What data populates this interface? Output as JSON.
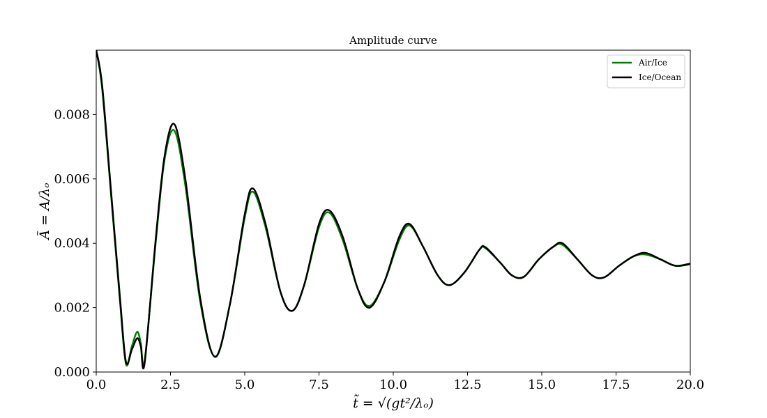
{
  "chart_data": {
    "type": "line",
    "title": "Amplitude curve",
    "xlabel": "t̃ = √(gt²/λₒ)",
    "ylabel": "Ã = A/λₒ",
    "xlim": [
      0,
      20
    ],
    "ylim": [
      0,
      0.01
    ],
    "xticks": [
      0,
      2.5,
      5,
      7.5,
      10,
      12.5,
      15,
      17.5,
      20
    ],
    "xtick_labels": [
      "0.0",
      "2.5",
      "5.0",
      "7.5",
      "10.0",
      "12.5",
      "15.0",
      "17.5",
      "20.0"
    ],
    "yticks": [
      0,
      0.002,
      0.004,
      0.006,
      0.008
    ],
    "ytick_labels": [
      "0.000",
      "0.002",
      "0.004",
      "0.006",
      "0.008"
    ],
    "legend_position": "top-right",
    "series": [
      {
        "name": "Air/Ice",
        "color": "#008000",
        "x": [
          0,
          0.2,
          0.5,
          0.8,
          1.0,
          1.2,
          1.38,
          1.5,
          1.63,
          2.0,
          2.3,
          2.63,
          3.0,
          3.5,
          4.0,
          4.5,
          5.0,
          5.28,
          5.7,
          6.2,
          6.6,
          7.0,
          7.5,
          7.85,
          8.3,
          8.8,
          9.2,
          9.7,
          10.2,
          10.55,
          11.0,
          11.5,
          11.9,
          12.4,
          12.9,
          13.1,
          13.6,
          14.0,
          14.4,
          14.9,
          15.4,
          15.7,
          16.2,
          16.7,
          17.1,
          17.6,
          18.1,
          18.5,
          19.0,
          19.5,
          20.0
        ],
        "y": [
          0.01,
          0.0088,
          0.0055,
          0.0022,
          0.00025,
          0.0008,
          0.00125,
          0.0009,
          0.00035,
          0.004,
          0.0066,
          0.0075,
          0.0058,
          0.0022,
          0.00048,
          0.0021,
          0.0048,
          0.0056,
          0.0045,
          0.0025,
          0.0019,
          0.0027,
          0.0045,
          0.00495,
          0.0041,
          0.0026,
          0.00205,
          0.0028,
          0.0041,
          0.00455,
          0.0039,
          0.003,
          0.0027,
          0.0031,
          0.0038,
          0.00385,
          0.0034,
          0.003,
          0.00296,
          0.0035,
          0.0039,
          0.00395,
          0.0035,
          0.003,
          0.00294,
          0.0033,
          0.0036,
          0.00365,
          0.0035,
          0.0033,
          0.00335
        ]
      },
      {
        "name": "Ice/Ocean",
        "color": "#000000",
        "x": [
          0,
          0.2,
          0.5,
          0.8,
          1.0,
          1.2,
          1.38,
          1.5,
          1.63,
          2.0,
          2.3,
          2.63,
          3.0,
          3.5,
          4.0,
          4.5,
          5.0,
          5.28,
          5.7,
          6.2,
          6.6,
          7.0,
          7.5,
          7.85,
          8.3,
          8.8,
          9.2,
          9.7,
          10.2,
          10.55,
          11.0,
          11.5,
          11.9,
          12.4,
          12.9,
          13.1,
          13.6,
          14.0,
          14.4,
          14.9,
          15.4,
          15.7,
          16.2,
          16.7,
          17.1,
          17.6,
          18.1,
          18.5,
          19.0,
          19.5,
          20.0
        ],
        "y": [
          0.01,
          0.0089,
          0.0056,
          0.0023,
          0.00032,
          0.0007,
          0.00105,
          0.0008,
          0.00028,
          0.0041,
          0.0067,
          0.0077,
          0.006,
          0.0023,
          0.00047,
          0.0021,
          0.0049,
          0.0057,
          0.0046,
          0.0025,
          0.0019,
          0.0027,
          0.0046,
          0.00502,
          0.0042,
          0.0026,
          0.002,
          0.0028,
          0.0042,
          0.0046,
          0.0039,
          0.003,
          0.0027,
          0.0031,
          0.0038,
          0.00388,
          0.0034,
          0.003,
          0.00296,
          0.0035,
          0.0039,
          0.004,
          0.0035,
          0.003,
          0.00294,
          0.0033,
          0.0036,
          0.0037,
          0.0035,
          0.0033,
          0.00337
        ]
      }
    ]
  }
}
